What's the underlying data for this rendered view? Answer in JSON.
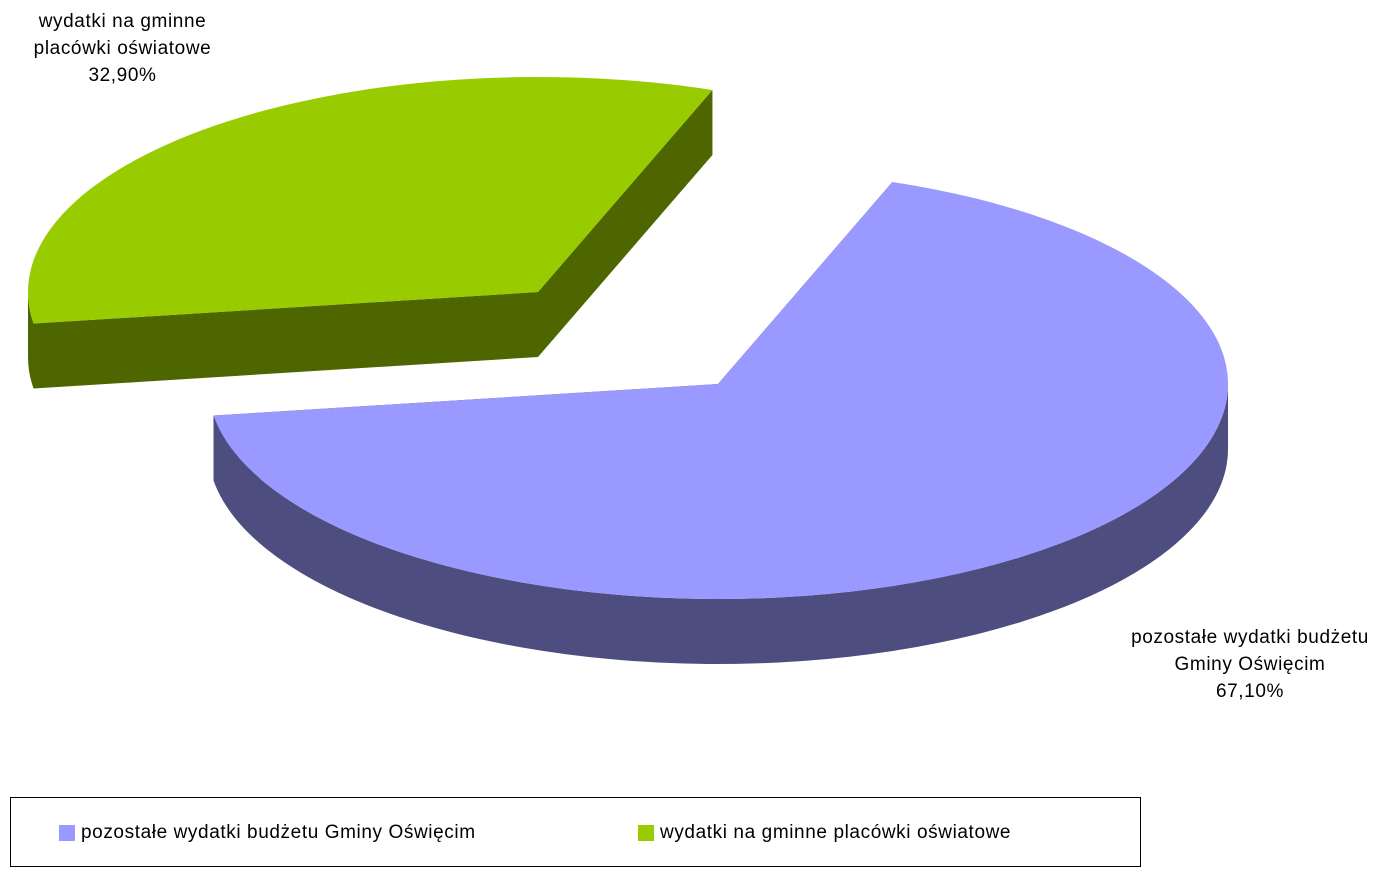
{
  "chart_data": {
    "type": "pie",
    "style": "3d-exploded",
    "slices": [
      {
        "label": "pozostałe wydatki budżetu Gminy Oświęcim",
        "label_lines": [
          "pozostałe wydatki budżetu",
          "Gminy Oświęcim"
        ],
        "value": 67.1,
        "value_text": "67,10%",
        "color": "#9999ff",
        "side_color": "#4d4d80"
      },
      {
        "label": "wydatki na gminne placówki oświatowe",
        "label_lines": [
          "wydatki na gminne",
          "placówki oświatowe"
        ],
        "value": 32.9,
        "value_text": "32,90%",
        "color": "#99cc00",
        "side_color": "#4d6600"
      }
    ],
    "legend_position": "bottom"
  }
}
